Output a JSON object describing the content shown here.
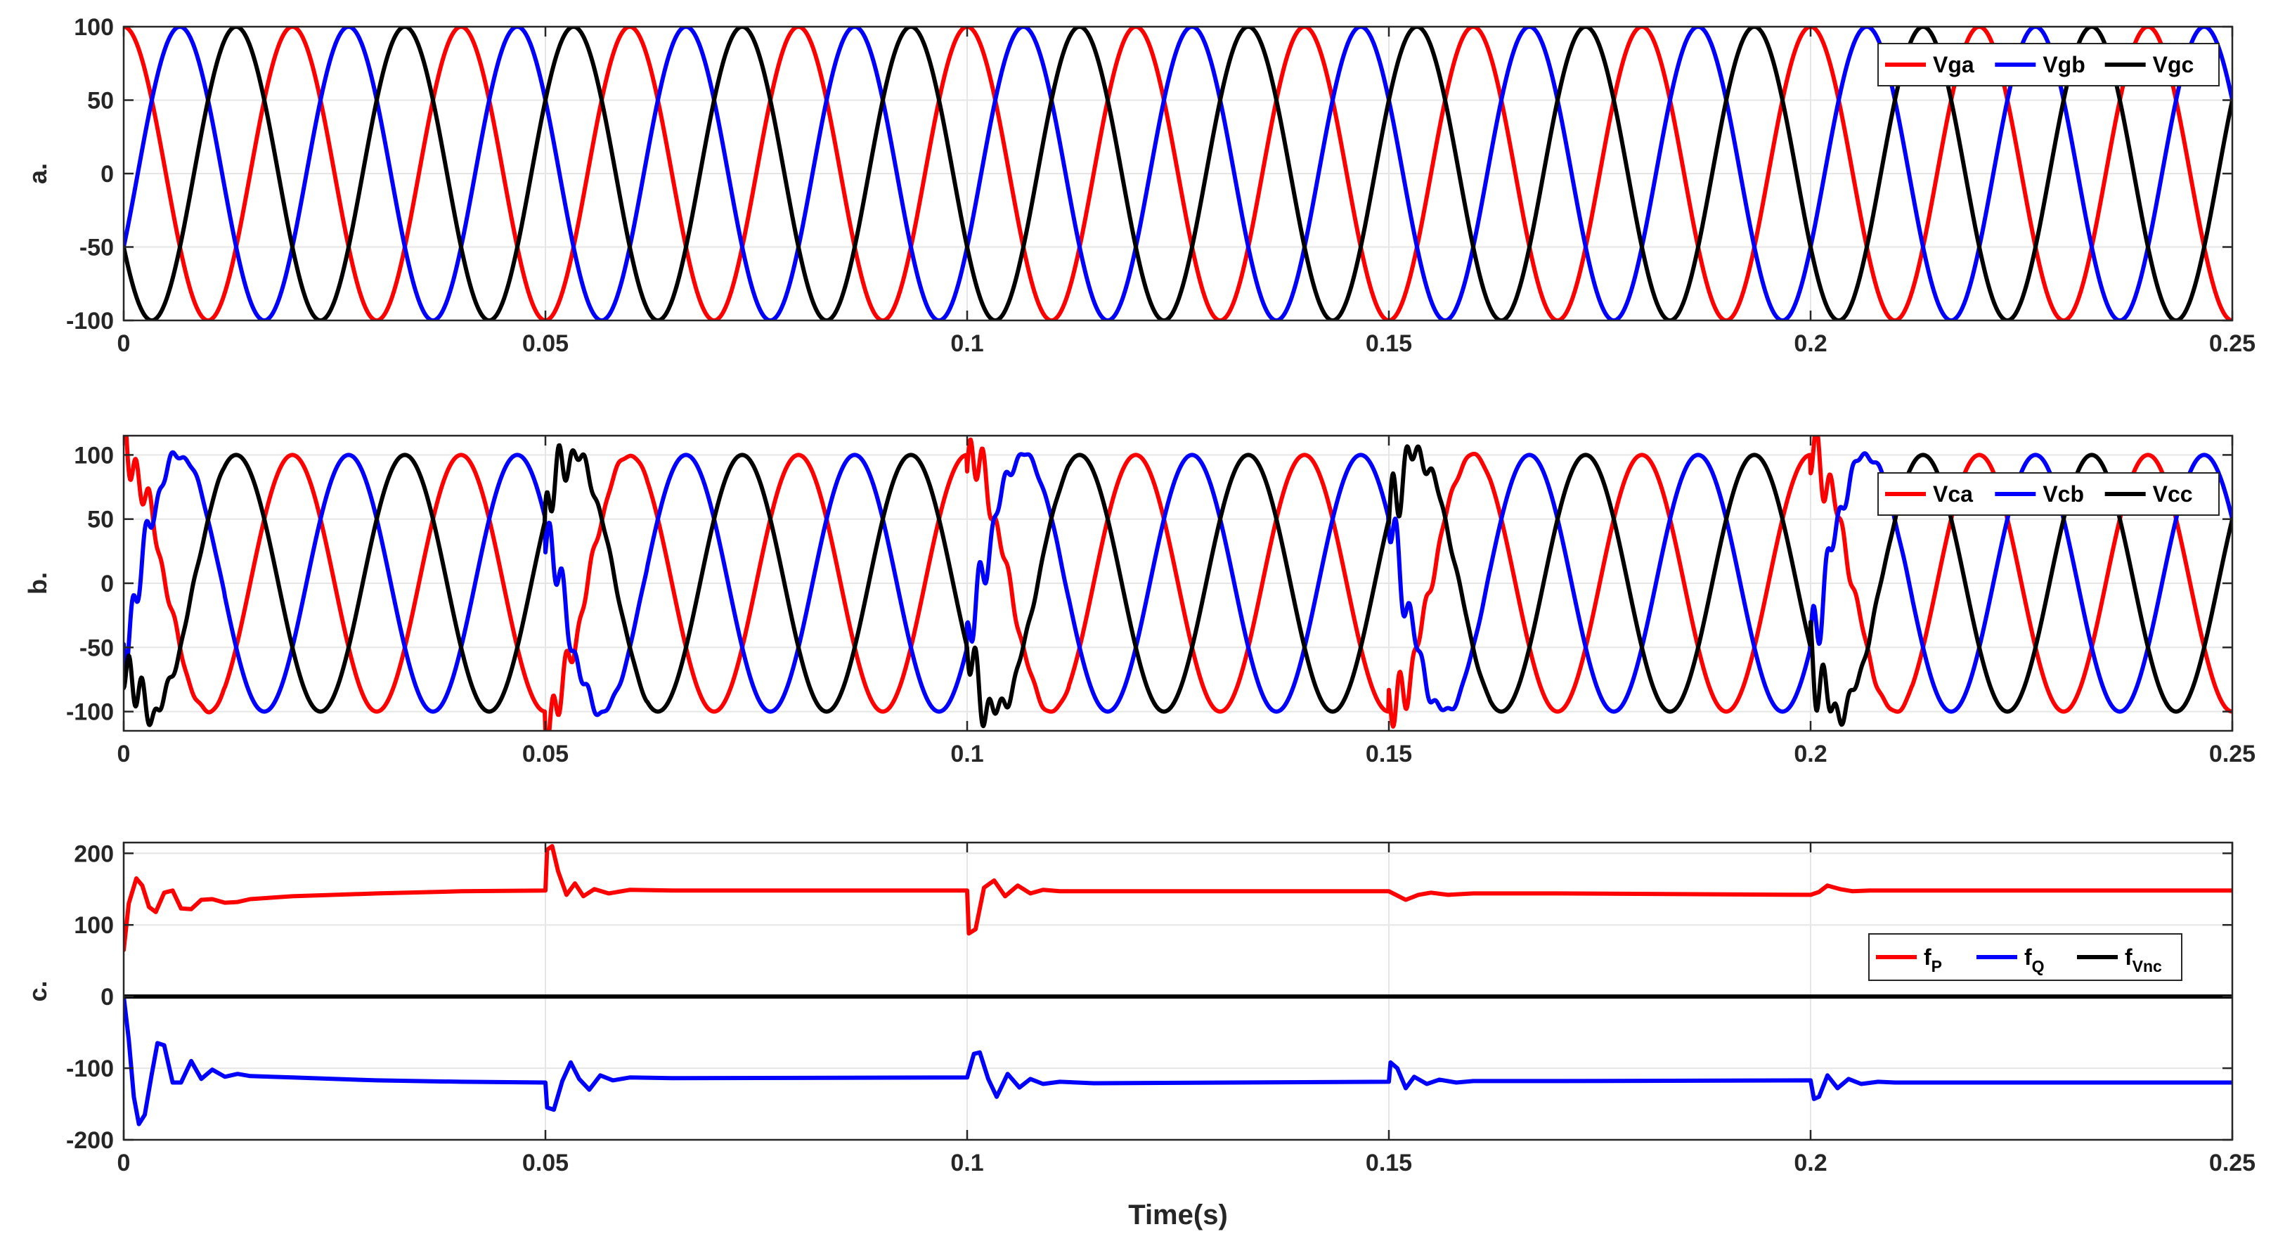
{
  "xlabel": "Time(s)",
  "colors": {
    "red": "#ff0000",
    "blue": "#0000ff",
    "black": "#000000"
  },
  "chart_data": [
    {
      "type": "line",
      "panel_label": "a.",
      "xlim": [
        0,
        0.25
      ],
      "ylim": [
        -100,
        100
      ],
      "xticks": [
        0,
        0.05,
        0.1,
        0.15,
        0.2,
        0.25
      ],
      "xtick_labels": [
        "0",
        "0.05",
        "0.1",
        "0.15",
        "0.2",
        "0.25"
      ],
      "yticks": [
        -100,
        -50,
        0,
        50,
        100
      ],
      "ytick_labels": [
        "-100",
        "-50",
        "0",
        "50",
        "100"
      ],
      "legend_position": "top-right",
      "waveform": {
        "kind": "three-phase-sine",
        "amplitude": 100,
        "frequency_hz": 50,
        "phase_shift_deg": 120
      },
      "series": [
        {
          "name": "Vga",
          "color": "#ff0000",
          "phase_deg": 90
        },
        {
          "name": "Vgb",
          "color": "#0000ff",
          "phase_deg": -30
        },
        {
          "name": "Vgc",
          "color": "#000000",
          "phase_deg": 210
        }
      ]
    },
    {
      "type": "line",
      "panel_label": "b.",
      "xlim": [
        0,
        0.25
      ],
      "ylim": [
        -115,
        115
      ],
      "xticks": [
        0,
        0.05,
        0.1,
        0.15,
        0.2,
        0.25
      ],
      "xtick_labels": [
        "0",
        "0.05",
        "0.1",
        "0.15",
        "0.2",
        "0.25"
      ],
      "yticks": [
        -100,
        -50,
        0,
        50,
        100
      ],
      "ytick_labels": [
        "-100",
        "-50",
        "0",
        "50",
        "100"
      ],
      "legend_position": "top-right",
      "waveform": {
        "kind": "three-phase-sine-with-transients",
        "amplitude": 100,
        "frequency_hz": 50,
        "phase_shift_deg": 120,
        "transient_times": [
          0,
          0.05,
          0.1,
          0.15,
          0.2
        ]
      },
      "series": [
        {
          "name": "Vca",
          "color": "#ff0000",
          "phase_deg": 90
        },
        {
          "name": "Vcb",
          "color": "#0000ff",
          "phase_deg": -30
        },
        {
          "name": "Vcc",
          "color": "#000000",
          "phase_deg": 210
        }
      ]
    },
    {
      "type": "line",
      "panel_label": "c.",
      "xlim": [
        0,
        0.25
      ],
      "ylim": [
        -200,
        215
      ],
      "xticks": [
        0,
        0.05,
        0.1,
        0.15,
        0.2,
        0.25
      ],
      "xtick_labels": [
        "0",
        "0.05",
        "0.1",
        "0.15",
        "0.2",
        "0.25"
      ],
      "yticks": [
        -200,
        -100,
        0,
        100,
        200
      ],
      "ytick_labels": [
        "-200",
        "-100",
        "0",
        "100",
        "200"
      ],
      "legend_position": "right",
      "series": [
        {
          "name": "f",
          "subscript": "P",
          "color": "#ff0000",
          "points": [
            [
              0,
              65
            ],
            [
              0.0006,
              130
            ],
            [
              0.0015,
              165
            ],
            [
              0.0022,
              155
            ],
            [
              0.003,
              125
            ],
            [
              0.0038,
              118
            ],
            [
              0.0048,
              145
            ],
            [
              0.0058,
              148
            ],
            [
              0.0068,
              123
            ],
            [
              0.008,
              122
            ],
            [
              0.0092,
              135
            ],
            [
              0.0105,
              136
            ],
            [
              0.012,
              131
            ],
            [
              0.0135,
              132
            ],
            [
              0.015,
              136
            ],
            [
              0.02,
              140
            ],
            [
              0.03,
              144
            ],
            [
              0.04,
              147
            ],
            [
              0.05,
              148
            ],
            [
              0.0502,
              205
            ],
            [
              0.0508,
              210
            ],
            [
              0.0515,
              175
            ],
            [
              0.0525,
              142
            ],
            [
              0.0535,
              158
            ],
            [
              0.0545,
              140
            ],
            [
              0.0558,
              150
            ],
            [
              0.0575,
              144
            ],
            [
              0.06,
              149
            ],
            [
              0.065,
              148
            ],
            [
              0.07,
              148
            ],
            [
              0.1,
              148
            ],
            [
              0.1002,
              88
            ],
            [
              0.101,
              94
            ],
            [
              0.102,
              152
            ],
            [
              0.1032,
              162
            ],
            [
              0.1045,
              140
            ],
            [
              0.106,
              155
            ],
            [
              0.1075,
              144
            ],
            [
              0.109,
              149
            ],
            [
              0.111,
              147
            ],
            [
              0.115,
              147
            ],
            [
              0.15,
              147
            ],
            [
              0.151,
              141
            ],
            [
              0.152,
              135
            ],
            [
              0.1535,
              142
            ],
            [
              0.155,
              145
            ],
            [
              0.157,
              142
            ],
            [
              0.16,
              144
            ],
            [
              0.17,
              144
            ],
            [
              0.2,
              142
            ],
            [
              0.201,
              146
            ],
            [
              0.202,
              155
            ],
            [
              0.2035,
              150
            ],
            [
              0.205,
              147
            ],
            [
              0.207,
              148
            ],
            [
              0.21,
              148
            ],
            [
              0.25,
              148
            ]
          ]
        },
        {
          "name": "f",
          "subscript": "Q",
          "color": "#0000ff",
          "points": [
            [
              0,
              0
            ],
            [
              0.0006,
              -60
            ],
            [
              0.0012,
              -140
            ],
            [
              0.0018,
              -178
            ],
            [
              0.0025,
              -165
            ],
            [
              0.0033,
              -110
            ],
            [
              0.004,
              -65
            ],
            [
              0.0048,
              -68
            ],
            [
              0.0058,
              -120
            ],
            [
              0.0068,
              -120
            ],
            [
              0.008,
              -90
            ],
            [
              0.0092,
              -115
            ],
            [
              0.0105,
              -102
            ],
            [
              0.012,
              -112
            ],
            [
              0.0135,
              -108
            ],
            [
              0.015,
              -111
            ],
            [
              0.02,
              -113
            ],
            [
              0.03,
              -117
            ],
            [
              0.04,
              -119
            ],
            [
              0.05,
              -120
            ],
            [
              0.0502,
              -155
            ],
            [
              0.051,
              -158
            ],
            [
              0.052,
              -118
            ],
            [
              0.053,
              -92
            ],
            [
              0.054,
              -115
            ],
            [
              0.0552,
              -130
            ],
            [
              0.0565,
              -110
            ],
            [
              0.058,
              -117
            ],
            [
              0.06,
              -113
            ],
            [
              0.065,
              -114
            ],
            [
              0.1,
              -113
            ],
            [
              0.1008,
              -80
            ],
            [
              0.1015,
              -78
            ],
            [
              0.1025,
              -115
            ],
            [
              0.1035,
              -140
            ],
            [
              0.1048,
              -108
            ],
            [
              0.1062,
              -127
            ],
            [
              0.1075,
              -115
            ],
            [
              0.109,
              -122
            ],
            [
              0.111,
              -119
            ],
            [
              0.115,
              -121
            ],
            [
              0.15,
              -119
            ],
            [
              0.1502,
              -92
            ],
            [
              0.151,
              -100
            ],
            [
              0.152,
              -128
            ],
            [
              0.153,
              -112
            ],
            [
              0.1545,
              -122
            ],
            [
              0.156,
              -116
            ],
            [
              0.158,
              -120
            ],
            [
              0.16,
              -118
            ],
            [
              0.17,
              -118
            ],
            [
              0.2,
              -117
            ],
            [
              0.2004,
              -143
            ],
            [
              0.201,
              -140
            ],
            [
              0.202,
              -110
            ],
            [
              0.2032,
              -128
            ],
            [
              0.2045,
              -115
            ],
            [
              0.206,
              -122
            ],
            [
              0.208,
              -119
            ],
            [
              0.21,
              -120
            ],
            [
              0.25,
              -120
            ]
          ]
        },
        {
          "name": "f",
          "subscript": "Vnc",
          "color": "#000000",
          "points": [
            [
              0,
              0
            ],
            [
              0.25,
              0
            ]
          ]
        }
      ]
    }
  ]
}
